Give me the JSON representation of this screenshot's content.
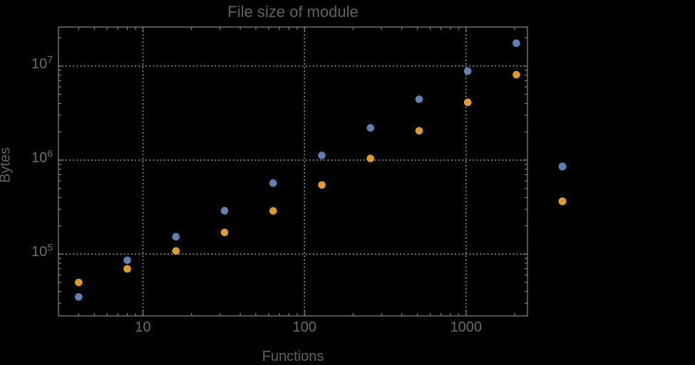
{
  "title": "File size of module",
  "axes": {
    "xlabel": "Functions",
    "ylabel": "Bytes",
    "x_tick_labels": [
      "10",
      "100",
      "1000"
    ],
    "y_tick_base": "10",
    "y_tick_exponents": [
      "5",
      "6",
      "7"
    ]
  },
  "colors": {
    "background": "#000000",
    "frame": "#7d7d7d",
    "tick": "#7d7d7d",
    "grid": "#909090",
    "text": "#616161",
    "tick_text": "#6b6b6b",
    "series_blue": "#5e81b5",
    "series_orange": "#e19c24"
  },
  "chart_data": {
    "type": "scatter",
    "title": "File size of module",
    "xlabel": "Functions",
    "ylabel": "Bytes",
    "x_scale": "log",
    "y_scale": "log",
    "xlim": [
      3.0,
      2400
    ],
    "ylim": [
      22000,
      26000000
    ],
    "x_ticks": [
      10,
      100,
      1000
    ],
    "y_ticks": [
      100000,
      1000000,
      10000000
    ],
    "grid": "dotted lines at major ticks, both axes",
    "x": [
      4,
      8,
      16,
      32,
      64,
      128,
      256,
      512,
      1024,
      2048
    ],
    "series": [
      {
        "name": "blue",
        "color": "#5e81b5",
        "values": [
          35000,
          86000,
          153000,
          289000,
          569000,
          1120000,
          2200000,
          4430000,
          8820000,
          17500000
        ]
      },
      {
        "name": "orange",
        "color": "#e19c24",
        "values": [
          49900,
          69700,
          108000,
          170000,
          288000,
          544000,
          1040000,
          2050000,
          4110000,
          8090000
        ]
      }
    ],
    "legend": {
      "position": "outside-right",
      "labels_visible": false,
      "marker_colors": [
        "#5e81b5",
        "#e19c24"
      ]
    }
  }
}
